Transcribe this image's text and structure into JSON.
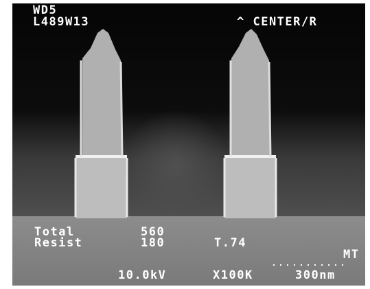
{
  "header": {
    "line1": "WD5",
    "line2": "L489W13",
    "mode": "^ CENTER/R"
  },
  "measurements": [
    {
      "label": "Total",
      "value": "560"
    },
    {
      "label": "Resist",
      "value": "180"
    }
  ],
  "tilt": "T.74",
  "operator": "MT",
  "footer": {
    "voltage": "10.0kV",
    "magnification": "X100K",
    "scale": "300nm"
  }
}
